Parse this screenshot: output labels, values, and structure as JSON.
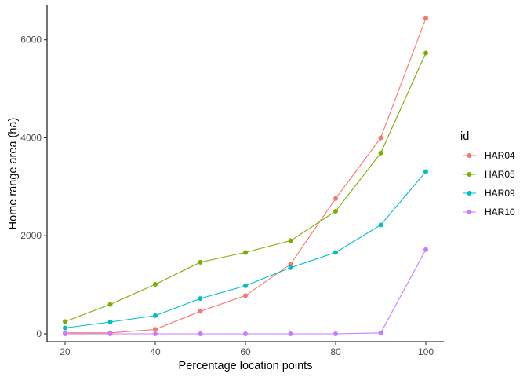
{
  "chart_data": {
    "type": "line",
    "xlabel": "Percentage location points",
    "ylabel": "Home range area (ha)",
    "xlim": [
      16,
      104
    ],
    "ylim": [
      -160,
      6700
    ],
    "x_ticks": [
      20,
      40,
      60,
      80,
      100
    ],
    "y_ticks": [
      0,
      2000,
      4000,
      6000
    ],
    "grid": false,
    "legend_title": "id",
    "legend_position": "right",
    "x": [
      20,
      30,
      40,
      50,
      60,
      70,
      80,
      90,
      100
    ],
    "series": [
      {
        "name": "HAR04",
        "color": "#F8766D",
        "values": [
          20,
          20,
          90,
          460,
          780,
          1420,
          2760,
          4000,
          6440
        ]
      },
      {
        "name": "HAR05",
        "color": "#7CAE00",
        "values": [
          250,
          600,
          1010,
          1460,
          1660,
          1900,
          2500,
          3690,
          5730
        ]
      },
      {
        "name": "HAR09",
        "color": "#00BFC4",
        "values": [
          120,
          240,
          370,
          720,
          980,
          1350,
          1660,
          2220,
          3310
        ]
      },
      {
        "name": "HAR10",
        "color": "#C77CFF",
        "values": [
          0,
          0,
          0,
          0,
          0,
          0,
          0,
          20,
          1720
        ]
      }
    ]
  }
}
